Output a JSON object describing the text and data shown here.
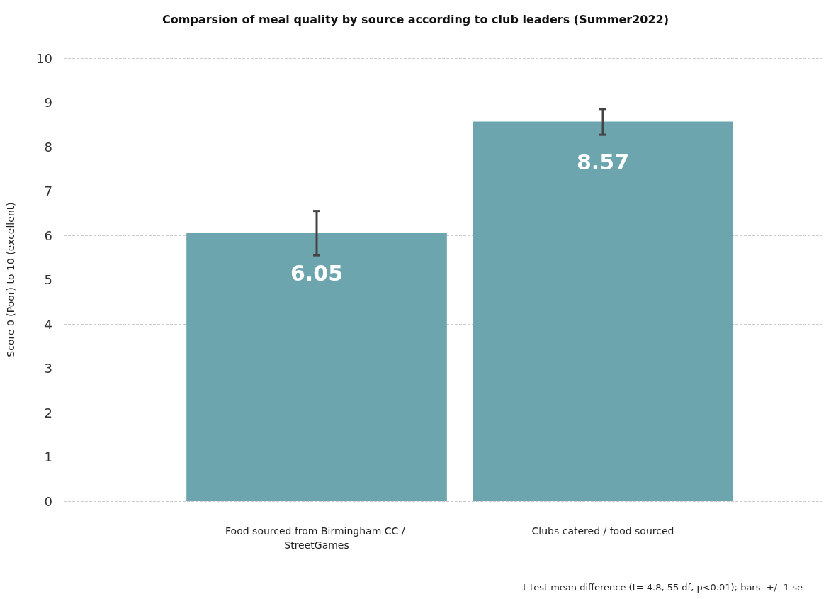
{
  "chart_data": {
    "type": "bar",
    "title": "Comparsion of meal quality by source according to club leaders (Summer2022)",
    "ylabel": "Score 0 (Poor) to 10 (excellent)",
    "categories": [
      "Food sourced from Birmingham CC / StreetGames",
      "Clubs catered / food sourced"
    ],
    "values": [
      6.05,
      8.57
    ],
    "color": "#6ca5ae",
    "errors": [
      [
        5.55,
        6.55
      ],
      [
        8.27,
        8.85
      ]
    ],
    "data_labels": true,
    "ylim": [
      0,
      10
    ],
    "yticks": [
      0,
      1,
      2,
      3,
      4,
      5,
      6,
      7,
      8,
      9,
      10
    ],
    "grid": "y",
    "annotations": [
      "t-test mean difference (t= 4.8, 55 df, p<0.01); bars  +/- 1 se"
    ]
  }
}
